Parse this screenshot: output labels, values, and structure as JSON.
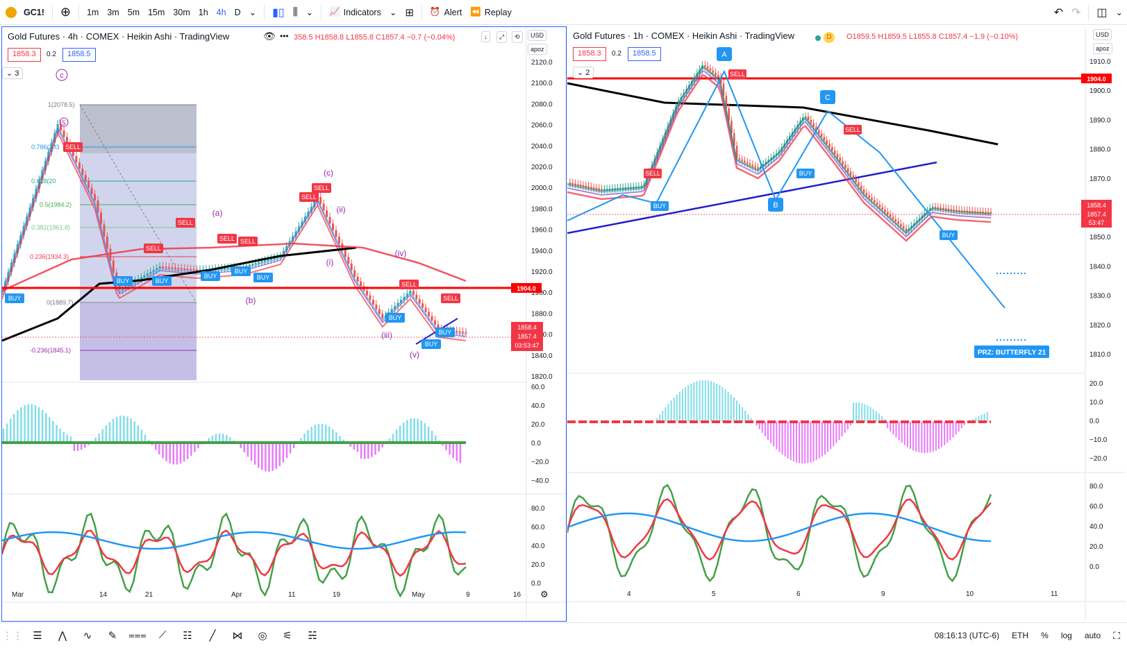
{
  "toolbar": {
    "symbol": "GC1!",
    "intervals": [
      "1m",
      "3m",
      "5m",
      "15m",
      "30m",
      "1h",
      "4h",
      "D"
    ],
    "active_interval": "4h",
    "indicators_label": "Indicators",
    "alert_label": "Alert",
    "replay_label": "Replay"
  },
  "left_chart": {
    "title": "Gold Futures · 4h · COMEX · Heikin Ashi · TradingView",
    "ohlc": "358.5 H1858.8 L1855.8 C1857.4 −0.7 (−0.04%)",
    "bid": "1858.3",
    "spread": "0.2",
    "ask": "1858.5",
    "indicator_count": "3",
    "currency": "USD",
    "scale_mode": "apoz",
    "price_ticks": [
      "2120.0",
      "2100.0",
      "2080.0",
      "2060.0",
      "2040.0",
      "2020.0",
      "2000.0",
      "1980.0",
      "1960.0",
      "1940.0",
      "1920.0",
      "1900.0",
      "1880.0",
      "1860.0",
      "1840.0",
      "1820.0"
    ],
    "level_label": "1904.0",
    "last_price": "1858.4",
    "close_price": "1857.4",
    "countdown": "03:53:47",
    "macd_ticks": [
      "60.0",
      "40.0",
      "20.0",
      "0.0",
      "−20.0",
      "−40.0"
    ],
    "rsi_ticks": [
      "80.0",
      "60.0",
      "40.0",
      "20.0",
      "0.0"
    ],
    "time_ticks": [
      "Mar",
      "14",
      "21",
      "Apr",
      "11",
      "19",
      "May",
      "9",
      "16"
    ],
    "fib_labels": [
      "1(2078.5)",
      "0.786(203",
      "0.618(20",
      "0.5(1984.2)",
      "0.382(1961.8)",
      "0.236(1934.3)",
      "0(1889.7)",
      "-0.236(1845.1)"
    ],
    "wave_labels": [
      "c",
      "(c)",
      "(a)",
      "(b)",
      "(ii)",
      "(i)",
      "(iv)",
      "(iii)",
      "(v)",
      "5"
    ],
    "signals": {
      "buy": "BUY",
      "sell": "SELL"
    }
  },
  "right_chart": {
    "title": "Gold Futures · 1h · COMEX · Heikin Ashi · TradingView",
    "ohlc": "O1859.5 H1859.5 L1855.8 C1857.4 −1.9 (−0.10%)",
    "d_badge": "D",
    "bid": "1858.3",
    "spread": "0.2",
    "ask": "1858.5",
    "indicator_count": "2",
    "currency": "USD",
    "scale_mode": "apoz",
    "price_ticks": [
      "1910.0",
      "1900.0",
      "1890.0",
      "1880.0",
      "1870.0",
      "1860.0",
      "1850.0",
      "1840.0",
      "1830.0",
      "1820.0",
      "1810.0"
    ],
    "level_label": "1904.0",
    "last_price": "1858.4",
    "close_price": "1857.4",
    "countdown": "53:47",
    "macd_ticks": [
      "20.0",
      "10.0",
      "0.0",
      "−10.0",
      "−20.0"
    ],
    "rsi_ticks": [
      "80.0",
      "60.0",
      "40.0",
      "20.0",
      "0.0"
    ],
    "time_ticks": [
      "4",
      "5",
      "6",
      "9",
      "10",
      "11"
    ],
    "pattern_points": [
      "A",
      "B",
      "C"
    ],
    "prz_label": "PRZ: BUTTERFLY 21",
    "signals": {
      "buy": "BUY",
      "sell": "SELL"
    }
  },
  "status": {
    "time": "08:16:13 (UTC-6)",
    "session": "ETH",
    "percent": "%",
    "log": "log",
    "auto": "auto"
  },
  "colors": {
    "accent": "#2962ff",
    "sell": "#f23645",
    "buy": "#2196f3",
    "wave": "#9c27b0"
  }
}
